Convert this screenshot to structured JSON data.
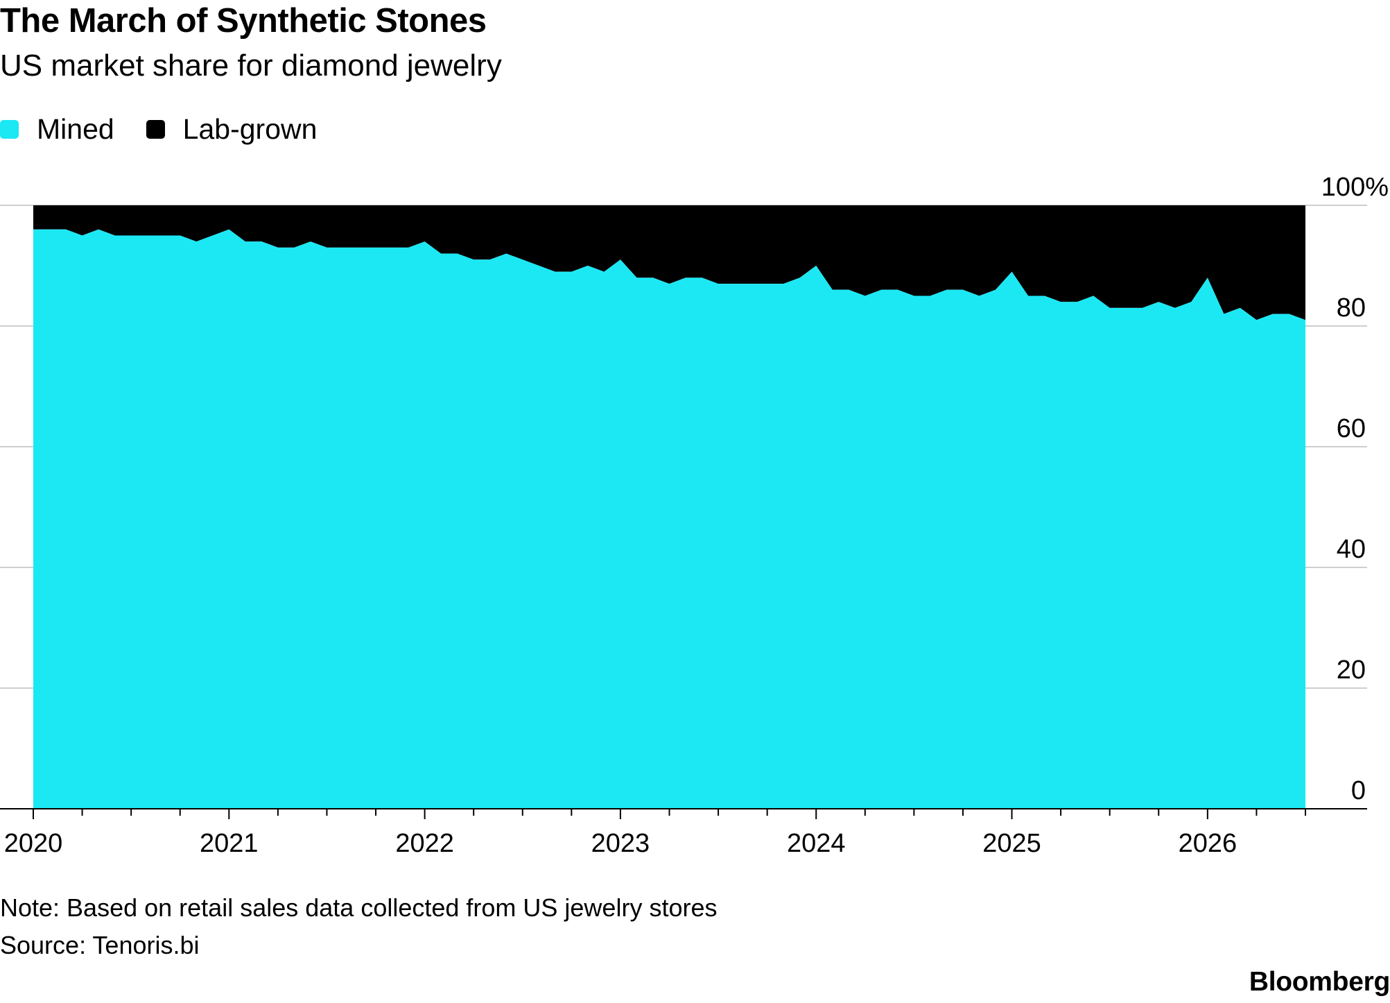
{
  "title": "The March of Synthetic Stones",
  "subtitle": "US market share for diamond jewelry",
  "note": "Note: Based on retail sales data collected from US jewelry stores",
  "source": "Source: Tenoris.bi",
  "brand": "Bloomberg",
  "chart_data": {
    "type": "area",
    "stacked": true,
    "title": "The March of Synthetic Stones",
    "subtitle": "US market share for diamond jewelry",
    "y_axis_position": "right",
    "ylim": [
      0,
      100
    ],
    "y_ticks": [
      0,
      20,
      40,
      60,
      80,
      100
    ],
    "y_tick_labels": [
      "0",
      "20",
      "40",
      "60",
      "80",
      "100%"
    ],
    "x_tick_labels": [
      "2020",
      "2021",
      "2022",
      "2023",
      "2024",
      "2025",
      "2026"
    ],
    "x_range": [
      "2020-01",
      "2026-07"
    ],
    "grid": "horizontal",
    "legend_placement": "top-left",
    "x": [
      "2020-01",
      "2020-02",
      "2020-03",
      "2020-04",
      "2020-05",
      "2020-06",
      "2020-07",
      "2020-08",
      "2020-09",
      "2020-10",
      "2020-11",
      "2020-12",
      "2021-01",
      "2021-02",
      "2021-03",
      "2021-04",
      "2021-05",
      "2021-06",
      "2021-07",
      "2021-08",
      "2021-09",
      "2021-10",
      "2021-11",
      "2021-12",
      "2022-01",
      "2022-02",
      "2022-03",
      "2022-04",
      "2022-05",
      "2022-06",
      "2022-07",
      "2022-08",
      "2022-09",
      "2022-10",
      "2022-11",
      "2022-12",
      "2023-01",
      "2023-02",
      "2023-03",
      "2023-04",
      "2023-05",
      "2023-06",
      "2023-07",
      "2023-08",
      "2023-09",
      "2023-10",
      "2023-11",
      "2023-12",
      "2024-01",
      "2024-02",
      "2024-03",
      "2024-04",
      "2024-05",
      "2024-06",
      "2024-07",
      "2024-08",
      "2024-09",
      "2024-10",
      "2024-11",
      "2024-12",
      "2025-01",
      "2025-02",
      "2025-03",
      "2025-04",
      "2025-05",
      "2025-06",
      "2025-07",
      "2025-08",
      "2025-09",
      "2025-10",
      "2025-11",
      "2025-12",
      "2026-01",
      "2026-02",
      "2026-03",
      "2026-04",
      "2026-05",
      "2026-06",
      "2026-07"
    ],
    "series": [
      {
        "name": "Mined",
        "color": "#1ce8f4",
        "values": [
          96,
          96,
          96,
          95,
          96,
          95,
          95,
          95,
          95,
          95,
          94,
          95,
          96,
          94,
          94,
          93,
          93,
          94,
          93,
          93,
          93,
          93,
          93,
          93,
          94,
          92,
          92,
          91,
          91,
          92,
          91,
          90,
          89,
          89,
          90,
          89,
          91,
          88,
          88,
          87,
          88,
          88,
          87,
          87,
          87,
          87,
          87,
          88,
          90,
          86,
          86,
          85,
          86,
          86,
          85,
          85,
          86,
          86,
          85,
          86,
          89,
          85,
          85,
          84,
          84,
          85,
          83,
          83,
          83,
          84,
          83,
          84,
          88,
          82,
          83,
          81,
          82,
          82,
          81
        ]
      },
      {
        "name": "Lab-grown",
        "color": "#000000",
        "values": [
          4,
          4,
          4,
          5,
          4,
          5,
          5,
          5,
          5,
          5,
          6,
          5,
          4,
          6,
          6,
          7,
          7,
          6,
          7,
          7,
          7,
          7,
          7,
          7,
          6,
          8,
          8,
          9,
          9,
          8,
          9,
          10,
          11,
          11,
          10,
          11,
          9,
          12,
          12,
          13,
          12,
          12,
          13,
          13,
          13,
          13,
          13,
          12,
          10,
          14,
          14,
          15,
          14,
          14,
          15,
          15,
          14,
          14,
          15,
          14,
          11,
          15,
          15,
          16,
          16,
          15,
          17,
          17,
          17,
          16,
          17,
          16,
          12,
          18,
          17,
          19,
          18,
          18,
          19
        ]
      }
    ]
  }
}
